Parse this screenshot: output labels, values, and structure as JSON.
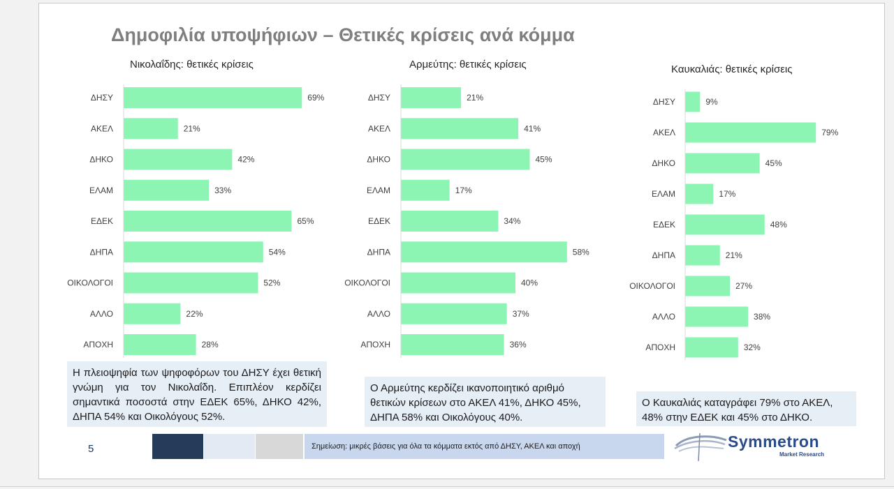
{
  "title": "Δημοφιλία υποψήφιων – Θετικές κρίσεις ανά κόμμα",
  "chart_data": [
    {
      "type": "bar",
      "orientation": "horizontal",
      "title": "Νικολαΐδης: θετικές κρίσεις",
      "categories": [
        "ΔΗΣΥ",
        "ΑΚΕΛ",
        "ΔΗΚΟ",
        "ΕΛΑΜ",
        "ΕΔΕΚ",
        "ΔΗΠΑ",
        "ΟΙΚΟΛΟΓΟΙ",
        "ΑΛΛΟ",
        "ΑΠΟΧΗ"
      ],
      "values": [
        69,
        21,
        42,
        33,
        65,
        54,
        52,
        22,
        28
      ],
      "value_suffix": "%",
      "xlim": [
        0,
        100
      ],
      "color": "#8cf5b4"
    },
    {
      "type": "bar",
      "orientation": "horizontal",
      "title": "Αρμεύτης: θετικές κρίσεις",
      "categories": [
        "ΔΗΣΥ",
        "ΑΚΕΛ",
        "ΔΗΚΟ",
        "ΕΛΑΜ",
        "ΕΔΕΚ",
        "ΔΗΠΑ",
        "ΟΙΚΟΛΟΓΟΙ",
        "ΑΛΛΟ",
        "ΑΠΟΧΗ"
      ],
      "values": [
        21,
        41,
        45,
        17,
        34,
        58,
        40,
        37,
        36
      ],
      "value_suffix": "%",
      "xlim": [
        0,
        100
      ],
      "color": "#8cf5b4"
    },
    {
      "type": "bar",
      "orientation": "horizontal",
      "title": "Καυκαλιάς: θετικές κρίσεις",
      "categories": [
        "ΔΗΣΥ",
        "ΑΚΕΛ",
        "ΔΗΚΟ",
        "ΕΛΑΜ",
        "ΕΔΕΚ",
        "ΔΗΠΑ",
        "ΟΙΚΟΛΟΓΟΙ",
        "ΑΛΛΟ",
        "ΑΠΟΧΗ"
      ],
      "values": [
        9,
        79,
        45,
        17,
        48,
        21,
        27,
        38,
        32
      ],
      "value_suffix": "%",
      "xlim": [
        0,
        100
      ],
      "color": "#8cf5b4"
    }
  ],
  "notes": [
    "Η πλειοψηφία των ψηφοφόρων του ΔΗΣΥ έχει θετική γνώμη για τον Νικολαΐδη. Επιπλέον κερδίζει σημαντικά ποσοστά στην ΕΔΕΚ 65%, ΔΗΚΟ 42%, ΔΗΠΑ 54% και Οικολόγους 52%.",
    "Ο Αρμεύτης κερδίζει ικανοποιητικό αριθμό θετικών κρίσεων στο ΑΚΕΛ 41%, ΔΗΚΟ 45%, ΔΗΠΑ 58% και Οικολόγους 40%.",
    "Ο Καυκαλιάς καταγράφει 79% στο ΑΚΕΛ, 48% στην ΕΔΕΚ και 45% στο ΔΗΚΟ."
  ],
  "footer": {
    "page_number": "5",
    "footnote": "Σημείωση: μικρές βάσεις για όλα τα κόμματα εκτός από ΔΗΣΥ, ΑΚΕΛ και αποχή",
    "logo_name": "Symmetron",
    "logo_sub": "Market Research"
  },
  "colors": {
    "bar": "#8cf5b4",
    "title": "#7f7f7f",
    "note_bg": "#e6eef6",
    "brand": "#2a4a8a"
  }
}
